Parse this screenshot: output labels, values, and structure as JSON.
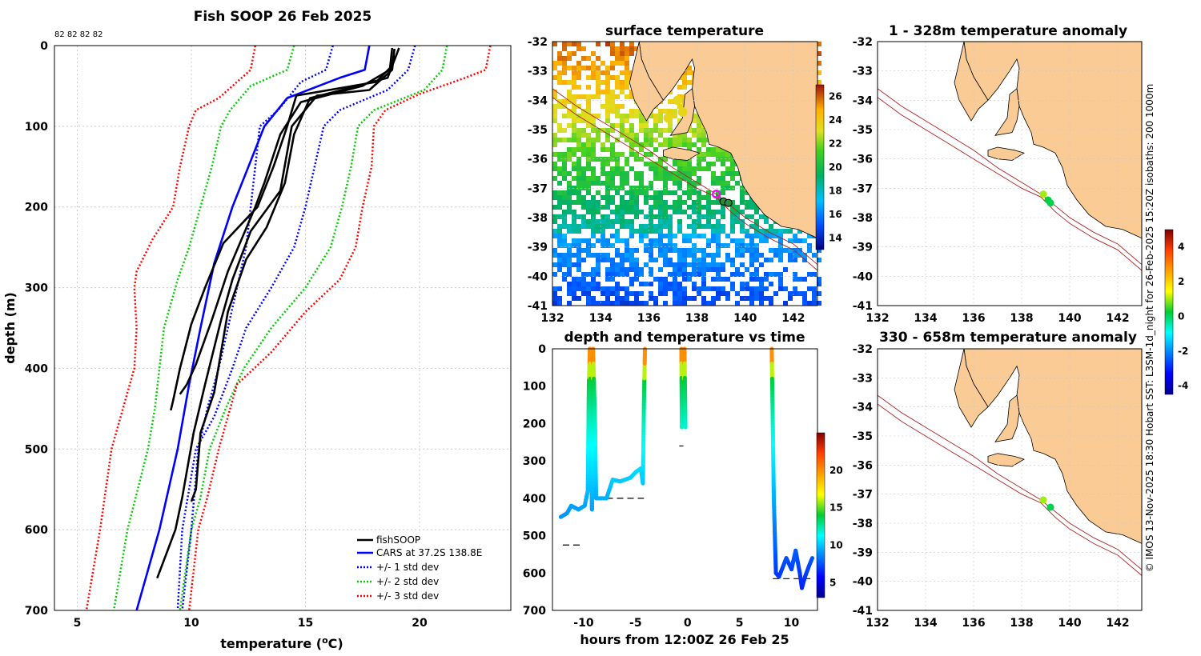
{
  "chart_data": [
    {
      "type": "line",
      "title": "Fish SOOP 26 Feb 2025",
      "xlabel": "temperature (",
      "xlabel_unit": "o",
      "xlabel_suffix": "C)",
      "ylabel": "depth (m)",
      "xlim": [
        4,
        24
      ],
      "ylim": [
        0,
        700
      ],
      "xticks": [
        5,
        10,
        15,
        20
      ],
      "yticks": [
        0,
        100,
        200,
        300,
        400,
        500,
        600,
        700
      ],
      "header_numbers": "82 82 82 82",
      "legend": [
        "fishSOOP",
        "CARS at 37.2S 138.8E",
        "+/- 1 std dev",
        "+/- 2 std dev",
        "+/- 3 std dev"
      ],
      "series": [
        {
          "name": "CARS mean",
          "color": "#0000ff",
          "style": "solid",
          "points": [
            [
              17.8,
              0
            ],
            [
              17.6,
              30
            ],
            [
              16.5,
              40
            ],
            [
              14.2,
              65
            ],
            [
              13.2,
              100
            ],
            [
              12.5,
              150
            ],
            [
              11.8,
              200
            ],
            [
              11.0,
              270
            ],
            [
              10.4,
              350
            ],
            [
              9.9,
              420
            ],
            [
              9.4,
              500
            ],
            [
              8.6,
              600
            ],
            [
              7.6,
              700
            ]
          ]
        },
        {
          "name": "+1 std",
          "color": "#0000ff",
          "style": "dotted",
          "points": [
            [
              16.2,
              0
            ],
            [
              15.9,
              30
            ],
            [
              14.8,
              45
            ],
            [
              13.8,
              80
            ],
            [
              13.0,
              100
            ],
            [
              12.8,
              150
            ],
            [
              12.6,
              200
            ],
            [
              12.4,
              250
            ],
            [
              12.0,
              300
            ],
            [
              11.6,
              350
            ],
            [
              11.2,
              400
            ],
            [
              10.7,
              450
            ],
            [
              10.3,
              500
            ],
            [
              10.0,
              600
            ],
            [
              9.6,
              700
            ]
          ]
        },
        {
          "name": "-1 std",
          "color": "#0000ff",
          "style": "dotted",
          "points": [
            [
              19.8,
              0
            ],
            [
              19.5,
              30
            ],
            [
              18.6,
              55
            ],
            [
              16.5,
              80
            ],
            [
              15.8,
              100
            ],
            [
              15.4,
              150
            ],
            [
              15.0,
              200
            ],
            [
              14.5,
              250
            ],
            [
              13.5,
              300
            ],
            [
              12.4,
              350
            ],
            [
              11.8,
              400
            ],
            [
              11.0,
              460
            ],
            [
              10.2,
              500
            ],
            [
              9.6,
              600
            ],
            [
              9.4,
              700
            ]
          ]
        },
        {
          "name": "+2 std",
          "color": "#00cc00",
          "style": "dotted",
          "points": [
            [
              14.5,
              0
            ],
            [
              14.2,
              30
            ],
            [
              12.6,
              50
            ],
            [
              11.7,
              80
            ],
            [
              11.3,
              100
            ],
            [
              10.9,
              150
            ],
            [
              10.4,
              200
            ],
            [
              9.9,
              250
            ],
            [
              9.4,
              290
            ],
            [
              8.8,
              350
            ],
            [
              8.6,
              400
            ],
            [
              8.4,
              450
            ],
            [
              8.1,
              500
            ],
            [
              7.2,
              600
            ],
            [
              6.6,
              700
            ]
          ]
        },
        {
          "name": "-2 std",
          "color": "#00cc00",
          "style": "dotted",
          "points": [
            [
              21.2,
              0
            ],
            [
              21.0,
              30
            ],
            [
              20.2,
              55
            ],
            [
              18.0,
              80
            ],
            [
              17.3,
              100
            ],
            [
              17.0,
              150
            ],
            [
              16.6,
              200
            ],
            [
              16.1,
              250
            ],
            [
              15.0,
              300
            ],
            [
              13.5,
              350
            ],
            [
              12.3,
              400
            ],
            [
              11.5,
              450
            ],
            [
              10.8,
              500
            ],
            [
              10.4,
              560
            ],
            [
              10.0,
              600
            ],
            [
              9.5,
              700
            ]
          ]
        },
        {
          "name": "+3 std",
          "color": "#ff0000",
          "style": "dotted",
          "points": [
            [
              12.8,
              0
            ],
            [
              12.6,
              30
            ],
            [
              11.2,
              65
            ],
            [
              10.2,
              80
            ],
            [
              9.9,
              100
            ],
            [
              9.5,
              150
            ],
            [
              9.2,
              200
            ],
            [
              8.3,
              240
            ],
            [
              7.6,
              280
            ],
            [
              7.5,
              300
            ],
            [
              7.6,
              350
            ],
            [
              7.5,
              400
            ],
            [
              7.0,
              450
            ],
            [
              6.5,
              500
            ],
            [
              6.0,
              600
            ],
            [
              5.4,
              700
            ]
          ]
        },
        {
          "name": "-3 std",
          "color": "#ff0000",
          "style": "dotted",
          "points": [
            [
              23.1,
              0
            ],
            [
              22.9,
              30
            ],
            [
              22.0,
              40
            ],
            [
              20.0,
              60
            ],
            [
              18.5,
              80
            ],
            [
              18.0,
              100
            ],
            [
              17.9,
              150
            ],
            [
              17.5,
              200
            ],
            [
              17.2,
              250
            ],
            [
              16.5,
              290
            ],
            [
              15.0,
              330
            ],
            [
              13.5,
              380
            ],
            [
              12.0,
              420
            ],
            [
              11.2,
              500
            ],
            [
              10.7,
              560
            ],
            [
              10.3,
              600
            ],
            [
              9.9,
              700
            ]
          ]
        },
        {
          "name": "fishSOOP cast 1",
          "color": "#000000",
          "style": "solid",
          "points": [
            [
              18.9,
              5
            ],
            [
              18.8,
              25
            ],
            [
              18.1,
              45
            ],
            [
              14.6,
              62
            ],
            [
              14.2,
              100
            ],
            [
              13.6,
              150
            ],
            [
              12.9,
              200
            ],
            [
              11.4,
              245
            ],
            [
              10.6,
              300
            ],
            [
              10.0,
              345
            ],
            [
              9.5,
              400
            ],
            [
              9.2,
              440
            ],
            [
              9.1,
              452
            ]
          ]
        },
        {
          "name": "fishSOOP cast 2",
          "color": "#000000",
          "style": "solid",
          "points": [
            [
              18.8,
              3
            ],
            [
              18.7,
              30
            ],
            [
              17.5,
              50
            ],
            [
              14.8,
              70
            ],
            [
              13.9,
              110
            ],
            [
              13.2,
              170
            ],
            [
              12.8,
              200
            ],
            [
              11.6,
              280
            ],
            [
              10.9,
              340
            ],
            [
              10.2,
              395
            ],
            [
              9.8,
              420
            ],
            [
              9.5,
              432
            ]
          ]
        },
        {
          "name": "fishSOOP cast 3",
          "color": "#000000",
          "style": "solid",
          "points": [
            [
              19.1,
              3
            ],
            [
              18.6,
              40
            ],
            [
              16.6,
              55
            ],
            [
              15.2,
              65
            ],
            [
              14.5,
              110
            ],
            [
              14.1,
              170
            ],
            [
              13.3,
              225
            ],
            [
              12.4,
              265
            ],
            [
              11.6,
              330
            ],
            [
              11.0,
              430
            ],
            [
              10.4,
              480
            ],
            [
              10.2,
              550
            ],
            [
              10.0,
              565
            ]
          ]
        },
        {
          "name": "fishSOOP cast 4",
          "color": "#000000",
          "style": "solid",
          "points": [
            [
              18.9,
              4
            ],
            [
              18.8,
              30
            ],
            [
              17.8,
              55
            ],
            [
              15.5,
              62
            ],
            [
              14.4,
              100
            ],
            [
              13.9,
              180
            ],
            [
              12.6,
              230
            ],
            [
              11.8,
              290
            ],
            [
              11.3,
              340
            ],
            [
              10.6,
              420
            ],
            [
              10.1,
              480
            ],
            [
              9.6,
              560
            ],
            [
              9.3,
              600
            ],
            [
              8.9,
              630
            ],
            [
              8.5,
              660
            ]
          ]
        }
      ]
    },
    {
      "type": "heatmap",
      "title": "surface temperature",
      "xlim": [
        132,
        143
      ],
      "ylim": [
        -41,
        -32
      ],
      "xticks": [
        132,
        134,
        136,
        138,
        140,
        142
      ],
      "yticks": [
        -32,
        -33,
        -34,
        -35,
        -36,
        -37,
        -38,
        -39,
        -40,
        -41
      ],
      "colorbar_ticks": [
        14,
        16,
        18,
        20,
        22,
        24,
        26
      ],
      "colorbar_range": [
        13,
        27
      ],
      "track": [
        [
          132,
          -33.9
        ],
        [
          135.2,
          -35.3
        ],
        [
          136.7,
          -36.0
        ],
        [
          138.7,
          -37.2
        ],
        [
          139.3,
          -37.5
        ]
      ],
      "markers": [
        {
          "lon": 138.8,
          "lat": -37.2,
          "kind": "ring"
        },
        {
          "lon": 139.1,
          "lat": -37.45,
          "kind": "dot"
        },
        {
          "lon": 139.3,
          "lat": -37.5,
          "kind": "dot"
        }
      ]
    },
    {
      "type": "scatter",
      "title": "depth and temperature vs time",
      "xlabel": "hours from 12:00Z 26 Feb 25",
      "xlim": [
        -13,
        12.5
      ],
      "ylim": [
        0,
        700
      ],
      "xticks": [
        -10,
        -5,
        0,
        5,
        10
      ],
      "yticks": [
        0,
        100,
        200,
        300,
        400,
        500,
        600,
        700
      ],
      "colorbar_ticks": [
        5,
        10,
        15,
        20
      ],
      "colorbar_range": [
        3,
        25
      ],
      "bottom_dashes": [
        [
          -12,
          -10.2,
          525
        ],
        [
          -8.8,
          -4.2,
          400
        ],
        [
          -0.8,
          -0.4,
          260
        ],
        [
          8.2,
          12,
          615
        ]
      ],
      "traces": [
        {
          "name": "dive 1",
          "points": [
            [
              -12.2,
              450
            ],
            [
              -11.6,
              440
            ],
            [
              -11.2,
              420
            ],
            [
              -10.5,
              430
            ],
            [
              -9.9,
              420
            ],
            [
              -9.6,
              380
            ],
            [
              -9.5,
              100
            ],
            [
              -9.4,
              0
            ],
            [
              -9.3,
              200
            ],
            [
              -9.2,
              430
            ],
            [
              -9.1,
              0
            ],
            [
              -8.9,
              200
            ],
            [
              -8.8,
              400
            ],
            [
              -7.8,
              400
            ],
            [
              -7.2,
              350
            ],
            [
              -6.5,
              355
            ],
            [
              -5.5,
              345
            ],
            [
              -5.0,
              330
            ],
            [
              -4.5,
              320
            ],
            [
              -4.3,
              360
            ],
            [
              -4.2,
              150
            ],
            [
              -4.1,
              0
            ]
          ]
        },
        {
          "name": "dive 2",
          "points": [
            [
              -0.6,
              0
            ],
            [
              -0.55,
              210
            ],
            [
              -0.4,
              200
            ],
            [
              -0.3,
              0
            ],
            [
              -0.2,
              210
            ]
          ]
        },
        {
          "name": "dive 3",
          "points": [
            [
              8.1,
              0
            ],
            [
              8.3,
              400
            ],
            [
              8.5,
              600
            ],
            [
              8.8,
              610
            ],
            [
              9.5,
              560
            ],
            [
              10.0,
              590
            ],
            [
              10.4,
              540
            ],
            [
              10.8,
              600
            ],
            [
              11.0,
              640
            ],
            [
              11.3,
              610
            ],
            [
              11.7,
              580
            ],
            [
              12.0,
              560
            ]
          ]
        }
      ]
    },
    {
      "type": "scatter",
      "title": "1 - 328m temperature anomaly",
      "xlim": [
        132,
        143
      ],
      "ylim": [
        -41,
        -32
      ],
      "xticks": [
        132,
        134,
        136,
        138,
        140,
        142
      ],
      "yticks": [
        -32,
        -33,
        -34,
        -35,
        -36,
        -37,
        -38,
        -39,
        -40,
        -41
      ],
      "colorbar_ticks": [
        -4,
        -2,
        0,
        2,
        4
      ],
      "colorbar_range": [
        -4.5,
        5
      ],
      "points": [
        {
          "lon": 138.9,
          "lat": -37.2,
          "anomaly": 1.0
        },
        {
          "lon": 139.1,
          "lat": -37.4,
          "anomaly": 0.2
        },
        {
          "lon": 139.2,
          "lat": -37.5,
          "anomaly": 0.1
        }
      ]
    },
    {
      "type": "scatter",
      "title": "330 - 658m temperature anomaly",
      "xlim": [
        132,
        143
      ],
      "ylim": [
        -41,
        -32
      ],
      "xticks": [
        132,
        134,
        136,
        138,
        140,
        142
      ],
      "yticks": [
        -32,
        -33,
        -34,
        -35,
        -36,
        -37,
        -38,
        -39,
        -40,
        -41
      ],
      "points": [
        {
          "lon": 138.9,
          "lat": -37.2,
          "anomaly": 1.0
        },
        {
          "lon": 139.2,
          "lat": -37.45,
          "anomaly": 0.1
        }
      ]
    }
  ],
  "credit": "© IMOS 13-Nov-2025 18:30 Hobart SST: L3SM-1d_night for 26-Feb-2025 15:20Z isobaths: 200  1000m",
  "colors": {
    "land": "#fbcb96",
    "coast": "#000000",
    "isobath": "#b22222",
    "grid": "#c8c8c8"
  }
}
